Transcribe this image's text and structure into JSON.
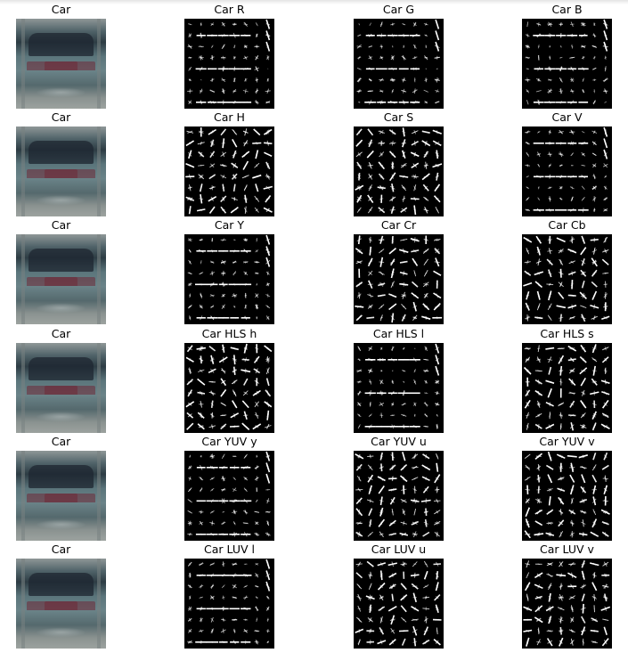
{
  "rows": [
    {
      "original": "Car",
      "channels": [
        "Car R",
        "Car G",
        "Car B"
      ]
    },
    {
      "original": "Car",
      "channels": [
        "Car H",
        "Car S",
        "Car V"
      ]
    },
    {
      "original": "Car",
      "channels": [
        "Car Y",
        "Car Cr",
        "Car Cb"
      ]
    },
    {
      "original": "Car",
      "channels": [
        "Car HLS h",
        "Car HLS l",
        "Car HLS s"
      ]
    },
    {
      "original": "Car",
      "channels": [
        "Car YUV y",
        "Car YUV u",
        "Car YUV v"
      ]
    },
    {
      "original": "Car",
      "channels": [
        "Car LUV l",
        "Car LUV u",
        "Car LUV v"
      ]
    }
  ],
  "colors": {
    "hog_background": "#000000",
    "hog_stroke": "#ffffff",
    "page_background": "#ffffff"
  }
}
